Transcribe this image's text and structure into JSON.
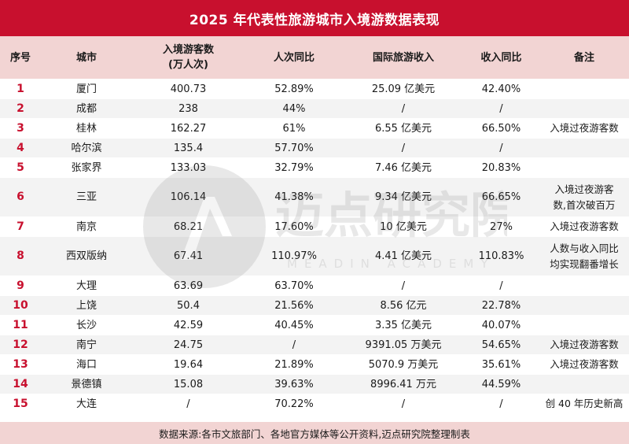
{
  "title": "2025 年代表性旅游城市入境游数据表现",
  "headers": {
    "no": "序号",
    "city": "城市",
    "arrivals_line1": "入境游客数",
    "arrivals_line2": "(万人次)",
    "arrivals_yoy": "人次同比",
    "revenue": "国际旅游收入",
    "revenue_yoy": "收入同比",
    "note": "备注"
  },
  "rows": [
    {
      "no": "1",
      "city": "厦门",
      "arrivals": "400.73",
      "arrivals_yoy": "52.89%",
      "revenue": "25.09 亿美元",
      "revenue_yoy": "42.40%",
      "note": ""
    },
    {
      "no": "2",
      "city": "成都",
      "arrivals": "238",
      "arrivals_yoy": "44%",
      "revenue": "/",
      "revenue_yoy": "/",
      "note": ""
    },
    {
      "no": "3",
      "city": "桂林",
      "arrivals": "162.27",
      "arrivals_yoy": "61%",
      "revenue": "6.55 亿美元",
      "revenue_yoy": "66.50%",
      "note": "入境过夜游客数"
    },
    {
      "no": "4",
      "city": "哈尔滨",
      "arrivals": "135.4",
      "arrivals_yoy": "57.70%",
      "revenue": "/",
      "revenue_yoy": "/",
      "note": ""
    },
    {
      "no": "5",
      "city": "张家界",
      "arrivals": "133.03",
      "arrivals_yoy": "32.79%",
      "revenue": "7.46 亿美元",
      "revenue_yoy": "20.83%",
      "note": ""
    },
    {
      "no": "6",
      "city": "三亚",
      "arrivals": "106.14",
      "arrivals_yoy": "41.38%",
      "revenue": "9.34 亿美元",
      "revenue_yoy": "66.65%",
      "note_line1": "入境过夜游客",
      "note_line2": "数,首次破百万"
    },
    {
      "no": "7",
      "city": "南京",
      "arrivals": "68.21",
      "arrivals_yoy": "17.60%",
      "revenue": "10 亿美元",
      "revenue_yoy": "27%",
      "note": "入境过夜游客数"
    },
    {
      "no": "8",
      "city": "西双版纳",
      "arrivals": "67.41",
      "arrivals_yoy": "110.97%",
      "revenue": "4.41 亿美元",
      "revenue_yoy": "110.83%",
      "note_line1": "人数与收入同比",
      "note_line2": "均实现翻番增长"
    },
    {
      "no": "9",
      "city": "大理",
      "arrivals": "63.69",
      "arrivals_yoy": "63.70%",
      "revenue": "/",
      "revenue_yoy": "/",
      "note": ""
    },
    {
      "no": "10",
      "city": "上饶",
      "arrivals": "50.4",
      "arrivals_yoy": "21.56%",
      "revenue": "8.56 亿元",
      "revenue_yoy": "22.78%",
      "note": ""
    },
    {
      "no": "11",
      "city": "长沙",
      "arrivals": "42.59",
      "arrivals_yoy": "40.45%",
      "revenue": "3.35 亿美元",
      "revenue_yoy": "40.07%",
      "note": ""
    },
    {
      "no": "12",
      "city": "南宁",
      "arrivals": "24.75",
      "arrivals_yoy": "/",
      "revenue": "9391.05 万美元",
      "revenue_yoy": "54.65%",
      "note": "入境过夜游客数"
    },
    {
      "no": "13",
      "city": "海口",
      "arrivals": "19.64",
      "arrivals_yoy": "21.89%",
      "revenue": "5070.9 万美元",
      "revenue_yoy": "35.61%",
      "note": "入境过夜游客数"
    },
    {
      "no": "14",
      "city": "景德镇",
      "arrivals": "15.08",
      "arrivals_yoy": "39.63%",
      "revenue": "8996.41 万元",
      "revenue_yoy": "44.59%",
      "note": ""
    },
    {
      "no": "15",
      "city": "大连",
      "arrivals": "/",
      "arrivals_yoy": "70.22%",
      "revenue": "/",
      "revenue_yoy": "/",
      "note": "创 40 年历史新高"
    }
  ],
  "footer": "数据来源:各市文旅部门、各地官方媒体等公开资料,迈点研究院整理制表",
  "watermark": {
    "brand": "迈点研究院",
    "subtitle": "MEADIN ACADEMY"
  },
  "colors": {
    "accent": "#c8102e",
    "header_bg": "#f2d4d3",
    "row_alt": "#f3f3f3"
  }
}
